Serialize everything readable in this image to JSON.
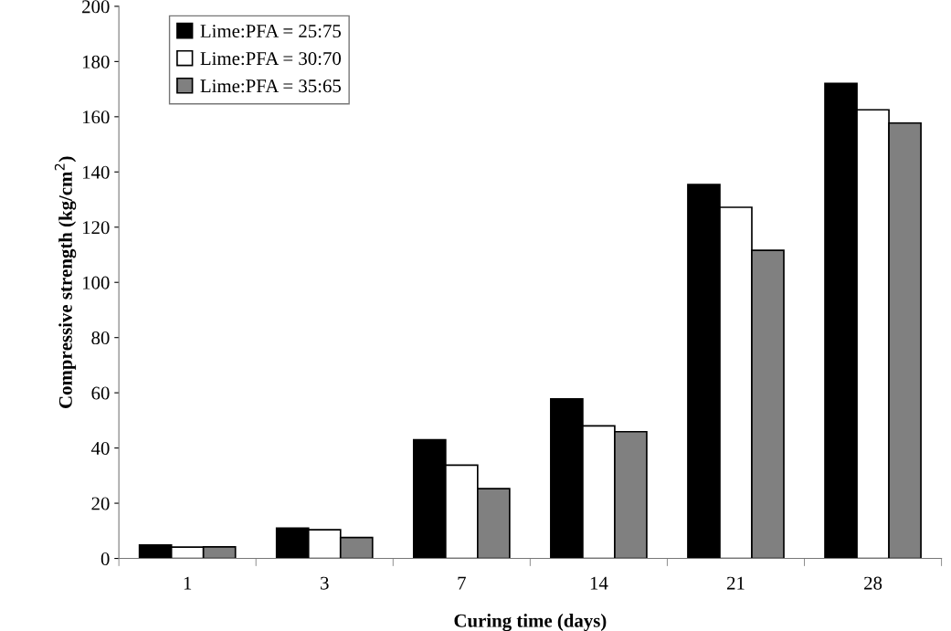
{
  "chart_data": {
    "type": "bar",
    "xlabel": "Curing time (days)",
    "ylabel": "Compressive strength (kg/cm$^{2}$)",
    "categories": [
      "1",
      "3",
      "7",
      "14",
      "21",
      "28"
    ],
    "series": [
      {
        "name": "Lime:PFA = 25:75",
        "color": "#000000",
        "values": [
          4.9,
          11.0,
          43.0,
          57.8,
          135.4,
          172.1
        ]
      },
      {
        "name": "Lime:PFA = 30:70",
        "color": "#ffffff",
        "values": [
          4.1,
          10.4,
          33.8,
          48.0,
          127.2,
          162.5
        ]
      },
      {
        "name": "Lime:PFA = 35:65",
        "color": "#808080",
        "values": [
          4.2,
          7.6,
          25.3,
          45.9,
          111.6,
          157.7
        ]
      }
    ],
    "ylim": [
      0,
      200
    ],
    "yticks": [
      0,
      20,
      40,
      60,
      80,
      100,
      120,
      140,
      160,
      180,
      200
    ],
    "grid": false,
    "legend": "top left"
  }
}
